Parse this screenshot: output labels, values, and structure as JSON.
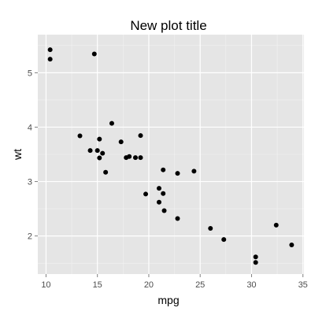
{
  "chart_data": {
    "type": "scatter",
    "title": "New plot title",
    "xlabel": "mpg",
    "ylabel": "wt",
    "xlim": [
      9.2,
      35.1
    ],
    "ylim": [
      1.3,
      5.7
    ],
    "x_ticks": [
      10,
      15,
      20,
      25,
      30,
      35
    ],
    "y_ticks": [
      2,
      3,
      4,
      5
    ],
    "grid": true,
    "colors": {
      "panel_background": "#e5e5e5",
      "grid_major": "#ffffff",
      "grid_minor": "#f2f2f2",
      "point": "#000000"
    },
    "points": [
      {
        "x": 21.0,
        "y": 2.62
      },
      {
        "x": 21.0,
        "y": 2.875
      },
      {
        "x": 22.8,
        "y": 2.32
      },
      {
        "x": 21.4,
        "y": 3.215
      },
      {
        "x": 18.7,
        "y": 3.44
      },
      {
        "x": 18.1,
        "y": 3.46
      },
      {
        "x": 14.3,
        "y": 3.57
      },
      {
        "x": 24.4,
        "y": 3.19
      },
      {
        "x": 22.8,
        "y": 3.15
      },
      {
        "x": 19.2,
        "y": 3.44
      },
      {
        "x": 17.8,
        "y": 3.44
      },
      {
        "x": 16.4,
        "y": 4.07
      },
      {
        "x": 17.3,
        "y": 3.73
      },
      {
        "x": 15.2,
        "y": 3.78
      },
      {
        "x": 10.4,
        "y": 5.25
      },
      {
        "x": 10.4,
        "y": 5.424
      },
      {
        "x": 14.7,
        "y": 5.345
      },
      {
        "x": 32.4,
        "y": 2.2
      },
      {
        "x": 30.4,
        "y": 1.615
      },
      {
        "x": 33.9,
        "y": 1.835
      },
      {
        "x": 21.5,
        "y": 2.465
      },
      {
        "x": 15.5,
        "y": 3.52
      },
      {
        "x": 15.2,
        "y": 3.435
      },
      {
        "x": 13.3,
        "y": 3.84
      },
      {
        "x": 19.2,
        "y": 3.845
      },
      {
        "x": 27.3,
        "y": 1.935
      },
      {
        "x": 26.0,
        "y": 2.14
      },
      {
        "x": 30.4,
        "y": 1.513
      },
      {
        "x": 15.8,
        "y": 3.17
      },
      {
        "x": 19.7,
        "y": 2.77
      },
      {
        "x": 15.0,
        "y": 3.57
      },
      {
        "x": 21.4,
        "y": 2.78
      }
    ]
  }
}
